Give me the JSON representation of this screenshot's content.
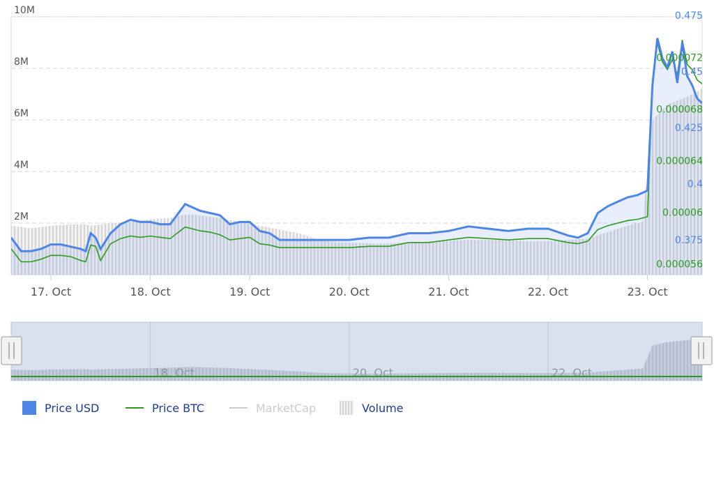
{
  "chart_data": {
    "type": "line",
    "title": "",
    "x_ticks": [
      "17. Oct",
      "18. Oct",
      "19. Oct",
      "20. Oct",
      "21. Oct",
      "22. Oct",
      "23. Oct"
    ],
    "navigator_ticks": [
      "18. Oct",
      "20. Oct",
      "22. Oct"
    ],
    "x_range": [
      16.6,
      23.55
    ],
    "left_axis": {
      "ticks": [
        "2M",
        "4M",
        "6M",
        "8M",
        "10M"
      ],
      "values": [
        2000000,
        4000000,
        6000000,
        8000000,
        10000000
      ],
      "min": 0,
      "max": 10000000
    },
    "usd_axis": {
      "ticks": [
        "0.375",
        "0.4",
        "0.425",
        "0.45",
        "0.475"
      ],
      "values": [
        0.375,
        0.4,
        0.425,
        0.45,
        0.475
      ],
      "min": 0.3625,
      "max": 0.4775
    },
    "btc_axis": {
      "ticks": [
        "0.000056",
        "0.00006",
        "0.000064",
        "0.000068",
        "0.000072"
      ],
      "values": [
        5.6e-05,
        6e-05,
        6.4e-05,
        6.8e-05,
        7.2e-05
      ],
      "min": 5.45e-05,
      "max": 7.45e-05
    },
    "grid": true,
    "legend_position": "bottom-left",
    "series": [
      {
        "name": "Price USD",
        "axis": "usd",
        "color": "#4e85e4",
        "points": [
          [
            16.6,
            0.379
          ],
          [
            16.7,
            0.373
          ],
          [
            16.8,
            0.373
          ],
          [
            16.9,
            0.374
          ],
          [
            17.0,
            0.376
          ],
          [
            17.1,
            0.376
          ],
          [
            17.2,
            0.375
          ],
          [
            17.3,
            0.374
          ],
          [
            17.35,
            0.373
          ],
          [
            17.4,
            0.381
          ],
          [
            17.45,
            0.379
          ],
          [
            17.5,
            0.374
          ],
          [
            17.6,
            0.381
          ],
          [
            17.7,
            0.385
          ],
          [
            17.8,
            0.387
          ],
          [
            17.9,
            0.386
          ],
          [
            18.0,
            0.386
          ],
          [
            18.1,
            0.385
          ],
          [
            18.2,
            0.385
          ],
          [
            18.3,
            0.391
          ],
          [
            18.35,
            0.394
          ],
          [
            18.4,
            0.393
          ],
          [
            18.5,
            0.391
          ],
          [
            18.6,
            0.39
          ],
          [
            18.7,
            0.389
          ],
          [
            18.8,
            0.385
          ],
          [
            18.9,
            0.386
          ],
          [
            19.0,
            0.386
          ],
          [
            19.1,
            0.382
          ],
          [
            19.2,
            0.381
          ],
          [
            19.3,
            0.378
          ],
          [
            19.5,
            0.378
          ],
          [
            19.7,
            0.378
          ],
          [
            19.9,
            0.378
          ],
          [
            20.0,
            0.378
          ],
          [
            20.2,
            0.379
          ],
          [
            20.4,
            0.379
          ],
          [
            20.6,
            0.381
          ],
          [
            20.8,
            0.381
          ],
          [
            21.0,
            0.382
          ],
          [
            21.2,
            0.384
          ],
          [
            21.4,
            0.383
          ],
          [
            21.6,
            0.382
          ],
          [
            21.8,
            0.383
          ],
          [
            22.0,
            0.383
          ],
          [
            22.2,
            0.38
          ],
          [
            22.3,
            0.379
          ],
          [
            22.4,
            0.381
          ],
          [
            22.5,
            0.39
          ],
          [
            22.6,
            0.393
          ],
          [
            22.7,
            0.395
          ],
          [
            22.8,
            0.397
          ],
          [
            22.9,
            0.398
          ],
          [
            23.0,
            0.4
          ],
          [
            23.05,
            0.447
          ],
          [
            23.1,
            0.468
          ],
          [
            23.15,
            0.459
          ],
          [
            23.2,
            0.455
          ],
          [
            23.25,
            0.462
          ],
          [
            23.3,
            0.448
          ],
          [
            23.35,
            0.466
          ],
          [
            23.4,
            0.451
          ],
          [
            23.45,
            0.447
          ],
          [
            23.5,
            0.441
          ],
          [
            23.55,
            0.439
          ]
        ]
      },
      {
        "name": "Price BTC",
        "axis": "btc",
        "color": "#2d9a1f",
        "points": [
          [
            16.6,
            5.65e-05
          ],
          [
            16.7,
            5.55e-05
          ],
          [
            16.8,
            5.55e-05
          ],
          [
            16.9,
            5.57e-05
          ],
          [
            17.0,
            5.6e-05
          ],
          [
            17.1,
            5.6e-05
          ],
          [
            17.2,
            5.59e-05
          ],
          [
            17.3,
            5.56e-05
          ],
          [
            17.35,
            5.55e-05
          ],
          [
            17.4,
            5.68e-05
          ],
          [
            17.45,
            5.67e-05
          ],
          [
            17.5,
            5.56e-05
          ],
          [
            17.6,
            5.69e-05
          ],
          [
            17.7,
            5.73e-05
          ],
          [
            17.8,
            5.75e-05
          ],
          [
            17.9,
            5.74e-05
          ],
          [
            18.0,
            5.75e-05
          ],
          [
            18.1,
            5.74e-05
          ],
          [
            18.2,
            5.73e-05
          ],
          [
            18.3,
            5.79e-05
          ],
          [
            18.35,
            5.82e-05
          ],
          [
            18.4,
            5.81e-05
          ],
          [
            18.5,
            5.79e-05
          ],
          [
            18.6,
            5.78e-05
          ],
          [
            18.7,
            5.76e-05
          ],
          [
            18.8,
            5.72e-05
          ],
          [
            18.9,
            5.73e-05
          ],
          [
            19.0,
            5.74e-05
          ],
          [
            19.1,
            5.69e-05
          ],
          [
            19.2,
            5.68e-05
          ],
          [
            19.3,
            5.66e-05
          ],
          [
            19.5,
            5.66e-05
          ],
          [
            19.7,
            5.66e-05
          ],
          [
            19.9,
            5.66e-05
          ],
          [
            20.0,
            5.66e-05
          ],
          [
            20.2,
            5.67e-05
          ],
          [
            20.4,
            5.67e-05
          ],
          [
            20.6,
            5.7e-05
          ],
          [
            20.8,
            5.7e-05
          ],
          [
            21.0,
            5.72e-05
          ],
          [
            21.2,
            5.74e-05
          ],
          [
            21.4,
            5.73e-05
          ],
          [
            21.6,
            5.72e-05
          ],
          [
            21.8,
            5.73e-05
          ],
          [
            22.0,
            5.73e-05
          ],
          [
            22.2,
            5.7e-05
          ],
          [
            22.3,
            5.69e-05
          ],
          [
            22.4,
            5.71e-05
          ],
          [
            22.5,
            5.8e-05
          ],
          [
            22.6,
            5.83e-05
          ],
          [
            22.7,
            5.85e-05
          ],
          [
            22.8,
            5.87e-05
          ],
          [
            22.9,
            5.88e-05
          ],
          [
            23.0,
            5.9e-05
          ],
          [
            23.05,
            6.93e-05
          ],
          [
            23.1,
            7.25e-05
          ],
          [
            23.15,
            7.1e-05
          ],
          [
            23.2,
            7.04e-05
          ],
          [
            23.25,
            7.12e-05
          ],
          [
            23.3,
            7e-05
          ],
          [
            23.35,
            7.27e-05
          ],
          [
            23.4,
            7.08e-05
          ],
          [
            23.45,
            7.04e-05
          ],
          [
            23.5,
            6.96e-05
          ],
          [
            23.55,
            6.93e-05
          ]
        ]
      },
      {
        "name": "MarketCap",
        "visible": false,
        "color": "#cccccc"
      },
      {
        "name": "Volume",
        "axis": "left",
        "color": "#d8d8d8",
        "points": [
          [
            16.6,
            1900000
          ],
          [
            16.8,
            1800000
          ],
          [
            17.0,
            1900000
          ],
          [
            17.2,
            1950000
          ],
          [
            17.35,
            1950000
          ],
          [
            17.4,
            1900000
          ],
          [
            17.6,
            2000000
          ],
          [
            17.8,
            2050000
          ],
          [
            18.0,
            2150000
          ],
          [
            18.2,
            2200000
          ],
          [
            18.3,
            2300000
          ],
          [
            18.4,
            2350000
          ],
          [
            18.5,
            2300000
          ],
          [
            18.7,
            2200000
          ],
          [
            18.9,
            2050000
          ],
          [
            19.1,
            1900000
          ],
          [
            19.3,
            1750000
          ],
          [
            19.5,
            1600000
          ],
          [
            19.7,
            1350000
          ],
          [
            19.9,
            1250000
          ],
          [
            20.0,
            1250000
          ],
          [
            20.3,
            1200000
          ],
          [
            20.6,
            1250000
          ],
          [
            20.9,
            1300000
          ],
          [
            21.2,
            1350000
          ],
          [
            21.5,
            1350000
          ],
          [
            21.8,
            1300000
          ],
          [
            22.0,
            1300000
          ],
          [
            22.2,
            1350000
          ],
          [
            22.4,
            1400000
          ],
          [
            22.6,
            1650000
          ],
          [
            22.8,
            1900000
          ],
          [
            22.95,
            2050000
          ],
          [
            23.05,
            6000000
          ],
          [
            23.2,
            6600000
          ],
          [
            23.4,
            6900000
          ],
          [
            23.55,
            7200000
          ]
        ]
      }
    ]
  },
  "legend": {
    "items": [
      {
        "label": "Price USD",
        "color": "#4e85e4"
      },
      {
        "label": "Price BTC",
        "color": "#2d9a1f"
      },
      {
        "label": "MarketCap",
        "color": "#cccccc"
      },
      {
        "label": "Volume",
        "color": "#d8d8d8"
      }
    ]
  }
}
